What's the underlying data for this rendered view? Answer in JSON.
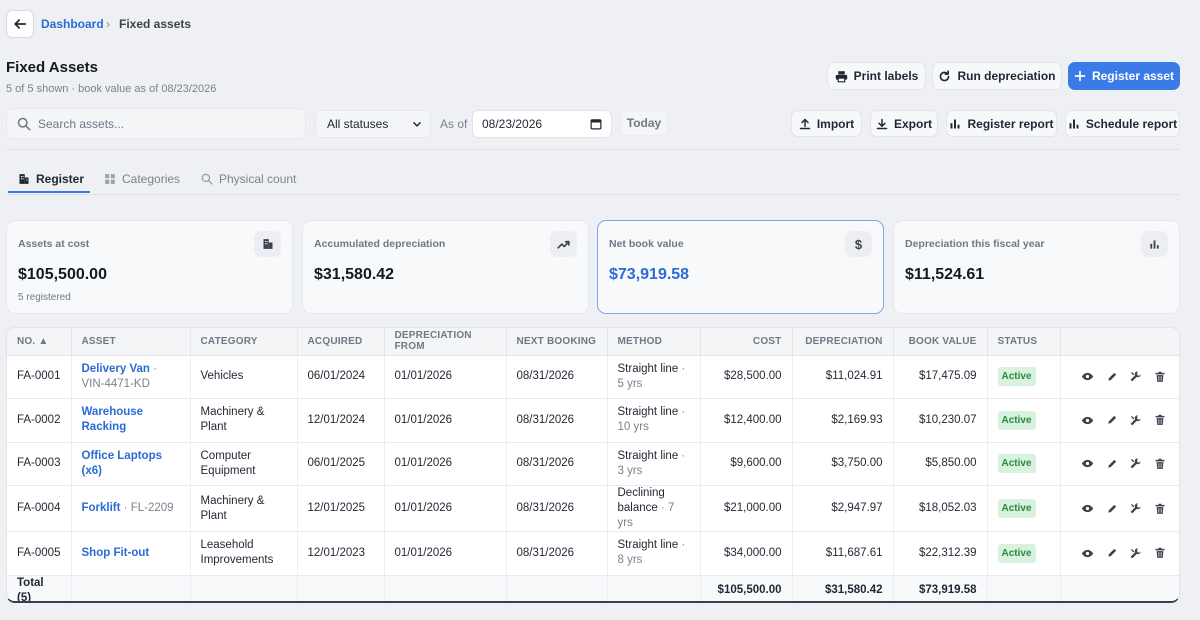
{
  "breadcrumb": {
    "parent": "Dashboard",
    "separator": "›",
    "current": "Fixed assets"
  },
  "header": {
    "title": "Fixed Assets",
    "subtitle": "5 of 5 shown · book value as of 08/23/2026"
  },
  "actions": {
    "print_labels": "Print labels",
    "run_depreciation": "Run depreciation",
    "register_asset": "Register asset"
  },
  "filters": {
    "search_placeholder": "Search assets...",
    "status_selected": "All statuses",
    "as_of_label": "As of",
    "date_value": "08/23/2026",
    "today_label": "Today"
  },
  "toolbar": {
    "import": "Import",
    "export": "Export",
    "register_report": "Register report",
    "schedule_report": "Schedule report"
  },
  "tabs": [
    {
      "label": "Register",
      "icon": "building-icon",
      "active": true
    },
    {
      "label": "Categories",
      "icon": "grid-icon",
      "active": false
    },
    {
      "label": "Physical count",
      "icon": "search-icon",
      "active": false
    }
  ],
  "cards": [
    {
      "label": "Assets at cost",
      "value": "$105,500.00",
      "note": "5 registered",
      "icon": "building-icon"
    },
    {
      "label": "Accumulated depreciation",
      "value": "$31,580.42",
      "note": "",
      "icon": "trend-up-icon"
    },
    {
      "label": "Net book value",
      "value": "$73,919.58",
      "note": "",
      "icon": "dollar-icon",
      "highlighted": true
    },
    {
      "label": "Depreciation this fiscal year",
      "value": "$11,524.61",
      "note": "",
      "icon": "bar-chart-icon"
    }
  ],
  "table": {
    "columns": [
      "NO. ▲",
      "ASSET",
      "CATEGORY",
      "ACQUIRED",
      "DEPRECIATION FROM",
      "NEXT BOOKING",
      "METHOD",
      "COST",
      "DEPRECIATION",
      "BOOK VALUE",
      "STATUS",
      ""
    ],
    "rows": [
      {
        "no": "FA-0001",
        "asset": "Delivery Van",
        "tag": " · VIN-4471-KD",
        "category": "Vehicles",
        "acquired": "06/01/2024",
        "dep_from": "01/01/2026",
        "next": "08/31/2026",
        "method": "Straight line",
        "life": "5 yrs",
        "cost": "$28,500.00",
        "depreciation": "$11,024.91",
        "book": "$17,475.09",
        "status": "Active"
      },
      {
        "no": "FA-0002",
        "asset": "Warehouse Racking",
        "tag": "",
        "category": "Machinery & Plant",
        "acquired": "12/01/2024",
        "dep_from": "01/01/2026",
        "next": "08/31/2026",
        "method": "Straight line",
        "life": "10 yrs",
        "cost": "$12,400.00",
        "depreciation": "$2,169.93",
        "book": "$10,230.07",
        "status": "Active"
      },
      {
        "no": "FA-0003",
        "asset": "Office Laptops (x6)",
        "tag": "",
        "category": "Computer Equipment",
        "acquired": "06/01/2025",
        "dep_from": "01/01/2026",
        "next": "08/31/2026",
        "method": "Straight line",
        "life": "3 yrs",
        "cost": "$9,600.00",
        "depreciation": "$3,750.00",
        "book": "$5,850.00",
        "status": "Active"
      },
      {
        "no": "FA-0004",
        "asset": "Forklift",
        "tag": " · FL-2209",
        "category": "Machinery & Plant",
        "acquired": "12/01/2025",
        "dep_from": "01/01/2026",
        "next": "08/31/2026",
        "method": "Declining balance",
        "life": "7 yrs",
        "cost": "$21,000.00",
        "depreciation": "$2,947.97",
        "book": "$18,052.03",
        "status": "Active"
      },
      {
        "no": "FA-0005",
        "asset": "Shop Fit-out",
        "tag": "",
        "category": "Leasehold Improvements",
        "acquired": "12/01/2023",
        "dep_from": "01/01/2026",
        "next": "08/31/2026",
        "method": "Straight line",
        "life": "8 yrs",
        "cost": "$34,000.00",
        "depreciation": "$11,687.61",
        "book": "$22,312.39",
        "status": "Active"
      }
    ],
    "total": {
      "label": "Total (5)",
      "cost": "$105,500.00",
      "depreciation": "$31,580.42",
      "book": "$73,919.58"
    }
  },
  "colors": {
    "accent": "#3b7be8",
    "link": "#2b6bd6",
    "status_bg": "#d9f2df",
    "status_text": "#2b8a3e"
  }
}
